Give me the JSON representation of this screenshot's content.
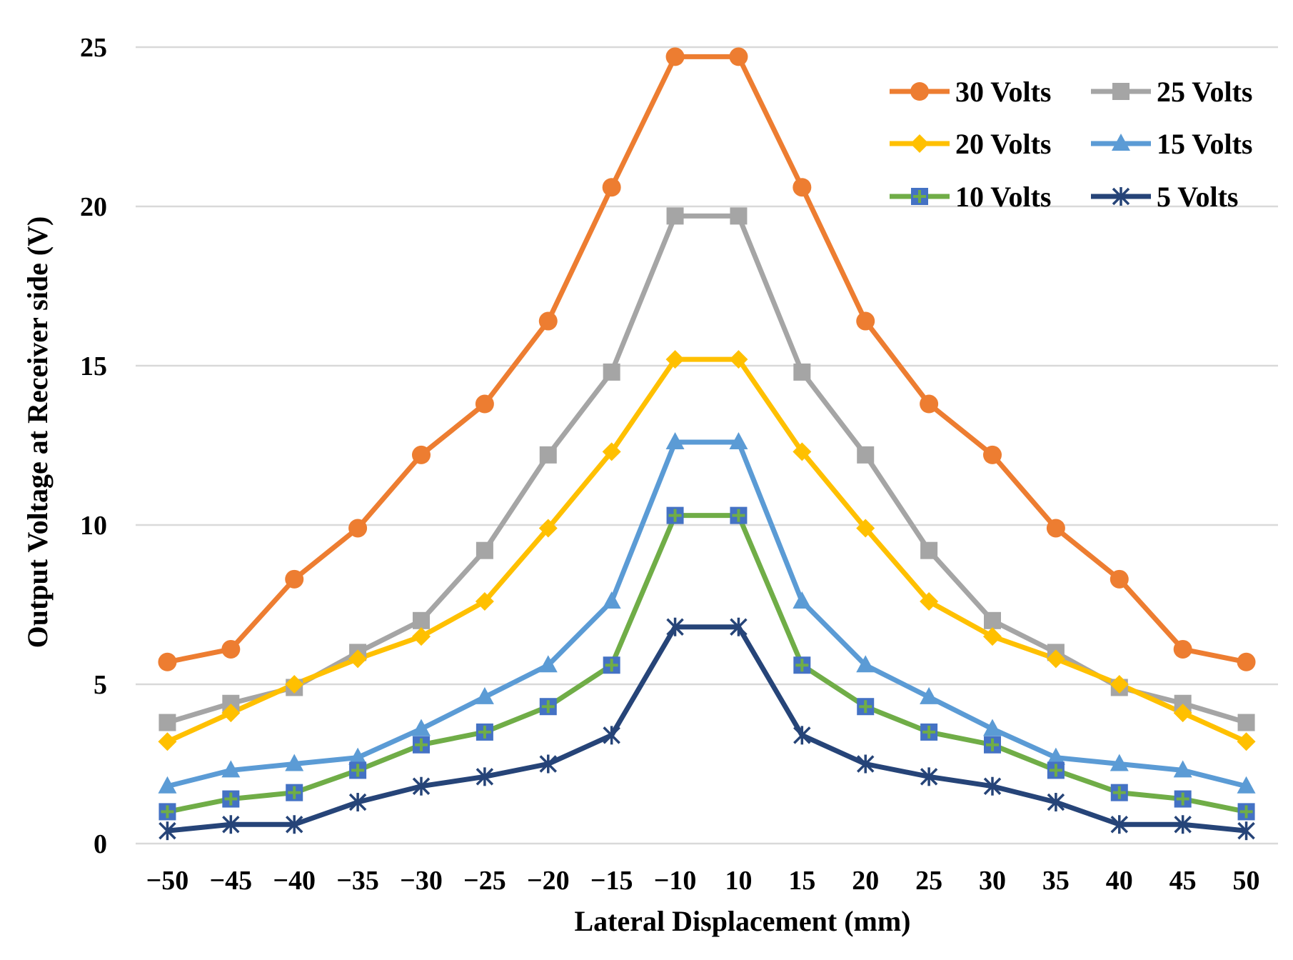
{
  "chart_data": {
    "type": "line",
    "title": "",
    "xlabel": "Lateral Displacement (mm)",
    "ylabel": "Output Voltage at Receiver side (V)",
    "categories": [
      "−50",
      "−45",
      "−40",
      "−35",
      "−30",
      "−25",
      "−20",
      "−15",
      "−10",
      "10",
      "15",
      "20",
      "25",
      "30",
      "35",
      "40",
      "45",
      "50"
    ],
    "ylim": [
      0,
      25
    ],
    "yticks": [
      0,
      5,
      10,
      15,
      20,
      25
    ],
    "grid": true,
    "legend_position": "top-right",
    "series": [
      {
        "name": "30 Volts",
        "color": "#ED7D31",
        "marker": "circle",
        "values": [
          5.7,
          6.1,
          8.3,
          9.9,
          12.2,
          13.8,
          16.4,
          20.6,
          24.7,
          24.7,
          20.6,
          16.4,
          13.8,
          12.2,
          9.9,
          8.3,
          6.1,
          5.7
        ]
      },
      {
        "name": "25 Volts",
        "color": "#A5A5A5",
        "marker": "square",
        "values": [
          3.8,
          4.4,
          4.9,
          6.0,
          7.0,
          9.2,
          12.2,
          14.8,
          19.7,
          19.7,
          14.8,
          12.2,
          9.2,
          7.0,
          6.0,
          4.9,
          4.4,
          3.8
        ]
      },
      {
        "name": "20 Volts",
        "color": "#FFC000",
        "marker": "diamond",
        "values": [
          3.2,
          4.1,
          5.0,
          5.8,
          6.5,
          7.6,
          9.9,
          12.3,
          15.2,
          15.2,
          12.3,
          9.9,
          7.6,
          6.5,
          5.8,
          5.0,
          4.1,
          3.2
        ]
      },
      {
        "name": "15 Volts",
        "color": "#5B9BD5",
        "marker": "triangle",
        "values": [
          1.8,
          2.3,
          2.5,
          2.7,
          3.6,
          4.6,
          5.6,
          7.6,
          12.6,
          12.6,
          7.6,
          5.6,
          4.6,
          3.6,
          2.7,
          2.5,
          2.3,
          1.8
        ]
      },
      {
        "name": "10 Volts",
        "color": "#70AD47",
        "marker": "plus-square",
        "marker_fill": "#4472C4",
        "values": [
          1.0,
          1.4,
          1.6,
          2.3,
          3.1,
          3.5,
          4.3,
          5.6,
          10.3,
          10.3,
          5.6,
          4.3,
          3.5,
          3.1,
          2.3,
          1.6,
          1.4,
          1.0
        ]
      },
      {
        "name": "5 Volts",
        "color": "#264478",
        "marker": "star",
        "values": [
          0.4,
          0.6,
          0.6,
          1.3,
          1.8,
          2.1,
          2.5,
          3.4,
          6.8,
          6.8,
          3.4,
          2.5,
          2.1,
          1.8,
          1.3,
          0.6,
          0.6,
          0.4
        ]
      }
    ]
  }
}
